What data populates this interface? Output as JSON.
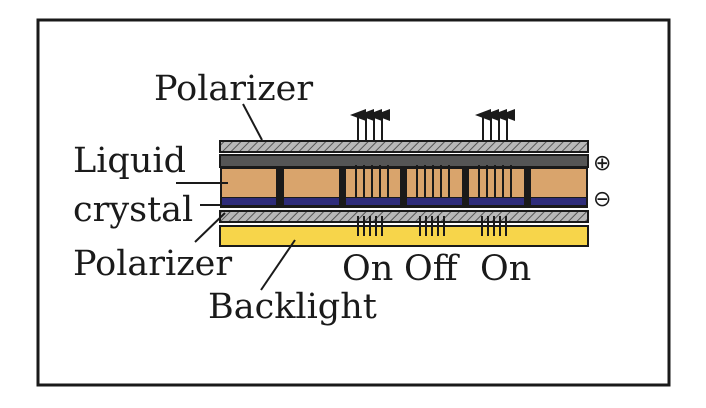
{
  "labels": {
    "top_polarizer": "Polarizer",
    "liquid": "Liquid",
    "crystal": "crystal",
    "bottom_polarizer": "Polarizer",
    "backlight": "Backlight",
    "on_left": "On",
    "off": "Off",
    "on_right": "On"
  },
  "terminals": {
    "positive": "⊕",
    "negative": "⊖"
  },
  "colors": {
    "polarizer_fill": "#a8a8a8",
    "electrode_top": "#555555",
    "liquid_crystal": "#d9a46c",
    "electrode_bottom": "#2e2c7a",
    "backlight": "#f7d54a",
    "ink": "#1a1a1a"
  },
  "pixels": [
    "On",
    "Off",
    "On"
  ]
}
